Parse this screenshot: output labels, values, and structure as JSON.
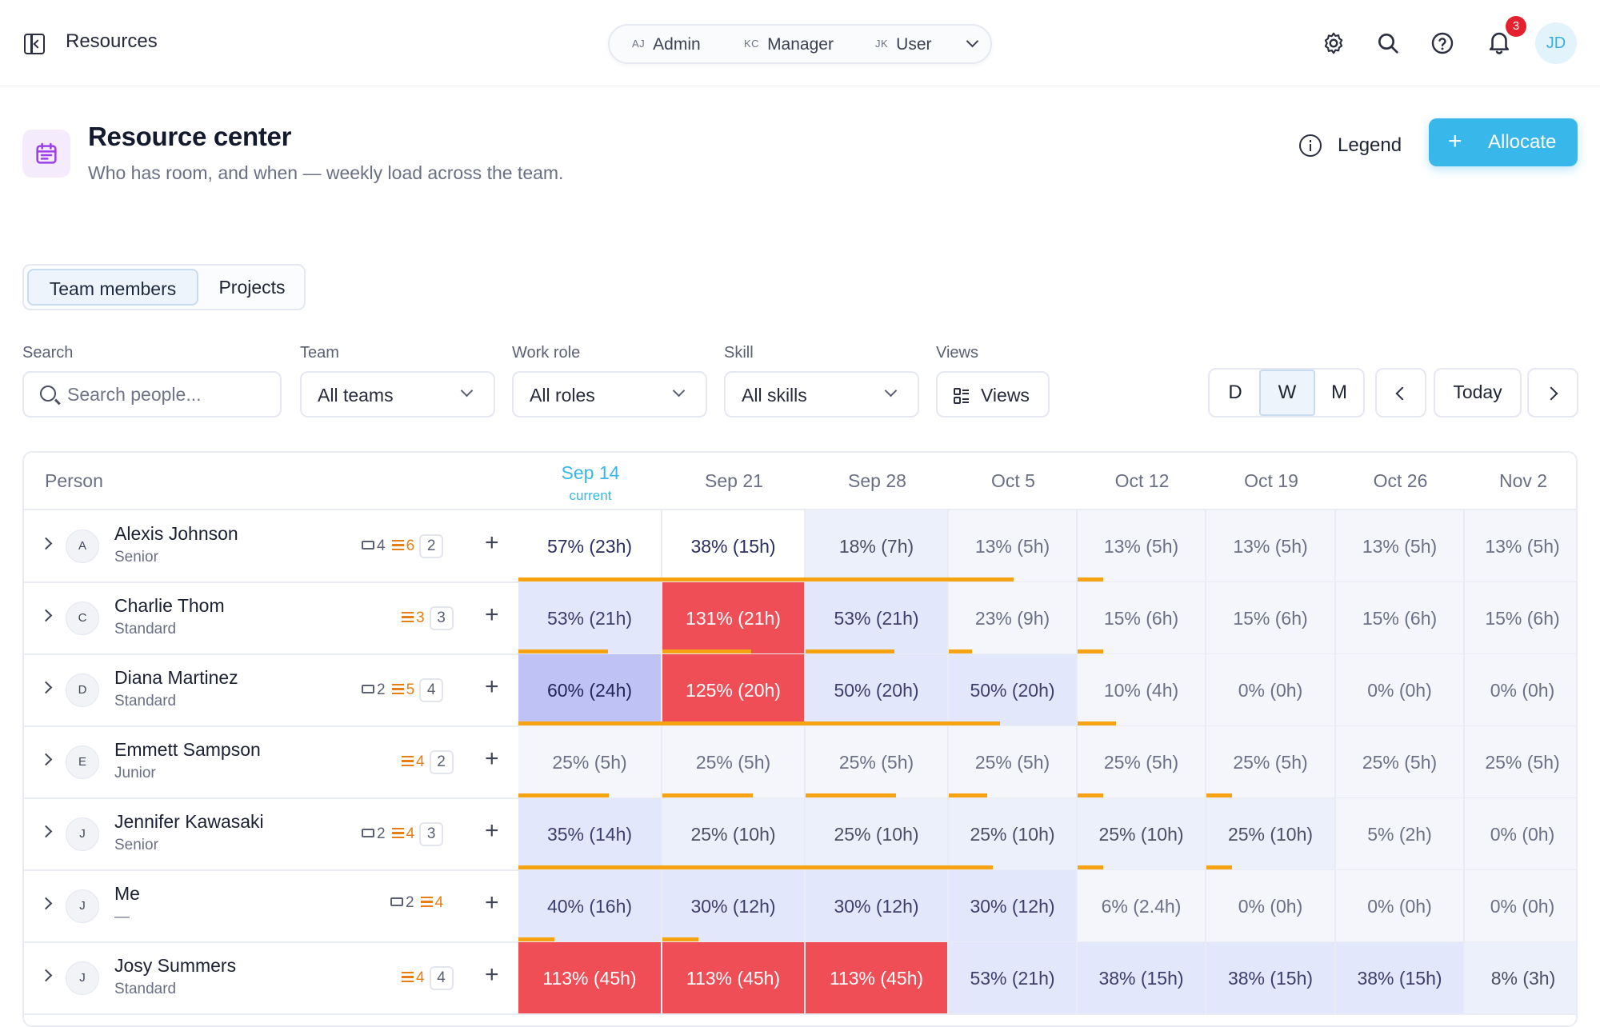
{
  "app": {
    "title": "Resources"
  },
  "roles": [
    {
      "initials": "AJ",
      "label": "Admin"
    },
    {
      "initials": "KC",
      "label": "Manager"
    },
    {
      "initials": "JK",
      "label": "User"
    }
  ],
  "topbar": {
    "notifications_count": "3",
    "user_initials": "JD"
  },
  "page": {
    "title": "Resource center",
    "subtitle": "Who has room, and when — weekly load across the team.",
    "legend_label": "Legend",
    "allocate_label": "Allocate"
  },
  "tabs": [
    {
      "label": "Team members",
      "active": true
    },
    {
      "label": "Projects",
      "active": false
    }
  ],
  "filters": {
    "search": {
      "label": "Search",
      "placeholder": "Search people..."
    },
    "team": {
      "label": "Team",
      "value": "All teams"
    },
    "role": {
      "label": "Work role",
      "value": "All roles"
    },
    "skill": {
      "label": "Skill",
      "value": "All skills"
    },
    "views": {
      "label": "Views",
      "value": "Views"
    }
  },
  "range": {
    "day": "D",
    "week": "W",
    "month": "M",
    "today": "Today",
    "active": "W"
  },
  "grid": {
    "person_header": "Person",
    "current_label": "current",
    "weeks": [
      "Sep 14",
      "Sep 21",
      "Sep 28",
      "Oct 5",
      "Oct 12",
      "Oct 19",
      "Oct 26",
      "Nov 2"
    ],
    "current_week_index": 0,
    "people": [
      {
        "initial": "A",
        "name": "Alexis Johnson",
        "level": "Senior",
        "tickets": "4",
        "tasks": "6",
        "count": "2",
        "cells": [
          "57% (23h)",
          "38% (15h)",
          "18% (7h)",
          "13% (5h)",
          "13% (5h)",
          "13% (5h)",
          "13% (5h)",
          "13% (5h)"
        ],
        "bars": [
          1,
          1,
          1,
          0.5,
          0.2,
          0,
          0,
          0
        ]
      },
      {
        "initial": "C",
        "name": "Charlie Thom",
        "level": "Standard",
        "tickets": "",
        "tasks": "3",
        "count": "3",
        "cells": [
          "53% (21h)",
          "131% (21h)",
          "53% (21h)",
          "23% (9h)",
          "15% (6h)",
          "15% (6h)",
          "15% (6h)",
          "15% (6h)"
        ],
        "bars": [
          0.62,
          0.62,
          0.62,
          0.18,
          0.2,
          0,
          0,
          0
        ]
      },
      {
        "initial": "D",
        "name": "Diana Martinez",
        "level": "Standard",
        "tickets": "2",
        "tasks": "5",
        "count": "4",
        "cells": [
          "60% (24h)",
          "125% (20h)",
          "50% (20h)",
          "50% (20h)",
          "10% (4h)",
          "0% (0h)",
          "0% (0h)",
          "0% (0h)"
        ],
        "bars": [
          1,
          1,
          1,
          0.4,
          0.3,
          0,
          0,
          0
        ]
      },
      {
        "initial": "E",
        "name": "Emmett Sampson",
        "level": "Junior",
        "tickets": "",
        "tasks": "4",
        "count": "2",
        "cells": [
          "25% (5h)",
          "25% (5h)",
          "25% (5h)",
          "25% (5h)",
          "25% (5h)",
          "25% (5h)",
          "25% (5h)",
          "25% (5h)"
        ],
        "bars": [
          0.63,
          0.63,
          0.63,
          0.3,
          0.2,
          0.2,
          0,
          0
        ]
      },
      {
        "initial": "J",
        "name": "Jennifer Kawasaki",
        "level": "Senior",
        "tickets": "2",
        "tasks": "4",
        "count": "3",
        "cells": [
          "35% (14h)",
          "25% (10h)",
          "25% (10h)",
          "25% (10h)",
          "25% (10h)",
          "25% (10h)",
          "5% (2h)",
          "0% (0h)"
        ],
        "bars": [
          1,
          1,
          1,
          0.34,
          0.2,
          0.2,
          0,
          0
        ]
      },
      {
        "initial": "J",
        "name": "Me",
        "level": "—",
        "tickets": "2",
        "tasks": "4",
        "count": "",
        "cells": [
          "40% (16h)",
          "30% (12h)",
          "30% (12h)",
          "30% (12h)",
          "6% (2.4h)",
          "0% (0h)",
          "0% (0h)",
          "0% (0h)"
        ],
        "bars": [
          0.25,
          0.25,
          0,
          0,
          0,
          0,
          0,
          0
        ]
      },
      {
        "initial": "J",
        "name": "Josy Summers",
        "level": "Standard",
        "tickets": "",
        "tasks": "4",
        "count": "4",
        "cells": [
          "113% (45h)",
          "113% (45h)",
          "113% (45h)",
          "53% (21h)",
          "38% (15h)",
          "38% (15h)",
          "38% (15h)",
          "8% (3h)"
        ],
        "bars": [
          0,
          0,
          0,
          0,
          0,
          0,
          0,
          0
        ]
      }
    ],
    "cell_levels": [
      [
        "c",
        "c",
        "1",
        "0",
        "0",
        "0",
        "0",
        "0"
      ],
      [
        "2",
        "o",
        "2",
        "0",
        "0",
        "0",
        "0",
        "0"
      ],
      [
        "4",
        "o",
        "2",
        "2",
        "0",
        "0",
        "0",
        "0"
      ],
      [
        "0",
        "0",
        "0",
        "0",
        "0",
        "0",
        "0",
        "0"
      ],
      [
        "2",
        "1",
        "1",
        "1",
        "1",
        "1",
        "0",
        "0"
      ],
      [
        "2",
        "2",
        "2",
        "2",
        "0",
        "0",
        "0",
        "0"
      ],
      [
        "o",
        "o",
        "o",
        "2",
        "2",
        "2",
        "2",
        "1"
      ]
    ]
  },
  "colors": {
    "accent": "#38b7ea",
    "overload": "#ef4e56",
    "bar": "#f5a313",
    "task": "#e67e15",
    "badge": "#e5212f"
  }
}
